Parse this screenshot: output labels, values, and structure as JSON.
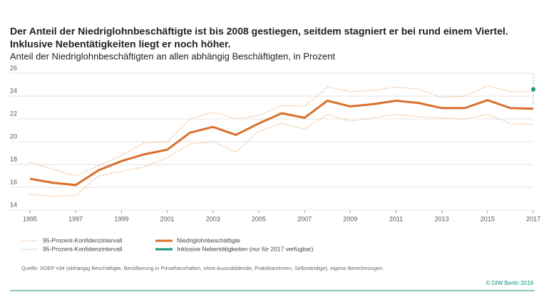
{
  "chart_data": {
    "type": "line",
    "title": "Der Anteil der Niedriglohnbeschäftigte ist bis 2008 gestiegen, seitdem stagniert er bei rund einem Viertel.",
    "title_line2": "Inklusive Nebentätigkeiten liegt er noch höher.",
    "subtitle": "Anteil der Niedriglohnbeschäftigten an allen abhängig Beschäftigten, in Prozent",
    "x": [
      1995,
      1996,
      1997,
      1998,
      1999,
      2000,
      2001,
      2002,
      2003,
      2004,
      2005,
      2006,
      2007,
      2008,
      2009,
      2010,
      2011,
      2012,
      2013,
      2014,
      2015,
      2016,
      2017
    ],
    "xlim": [
      1995,
      2017
    ],
    "xticks": [
      1995,
      1997,
      1999,
      2001,
      2003,
      2005,
      2007,
      2009,
      2011,
      2013,
      2015,
      2017
    ],
    "ylim": [
      14,
      26
    ],
    "yticks": [
      14,
      16,
      18,
      20,
      22,
      24,
      26
    ],
    "grid": true,
    "series": [
      {
        "name": "Niedriglohnbeschäftigte",
        "color": "#d9702b",
        "values": [
          16.75,
          16.4,
          16.2,
          17.5,
          18.3,
          18.9,
          19.3,
          20.8,
          21.3,
          20.6,
          21.6,
          22.5,
          22.1,
          23.6,
          23.1,
          23.3,
          23.6,
          23.4,
          22.95,
          22.95,
          23.65,
          22.95,
          22.9
        ]
      },
      {
        "name": "95-Prozent-Konfidenzintervall",
        "color": "#e9a46a",
        "upper": [
          18.2,
          17.6,
          17.0,
          17.9,
          18.8,
          19.9,
          20.0,
          22.0,
          22.6,
          22.0,
          22.3,
          23.2,
          23.1,
          24.8,
          24.4,
          24.5,
          24.8,
          24.6,
          23.9,
          24.0,
          24.9,
          24.4,
          24.4
        ],
        "lower": [
          15.4,
          15.2,
          15.3,
          17.0,
          17.4,
          17.8,
          18.6,
          19.8,
          20.0,
          19.1,
          20.9,
          21.6,
          21.1,
          22.4,
          21.8,
          22.1,
          22.4,
          22.2,
          22.1,
          22.0,
          22.4,
          21.6,
          21.5
        ]
      },
      {
        "name": "Inklusive Nebentätigkeiten (nur für 2017 verfügbar)",
        "color": "#1a9185",
        "values": [
          null,
          null,
          null,
          null,
          null,
          null,
          null,
          null,
          null,
          null,
          null,
          null,
          null,
          null,
          null,
          null,
          null,
          null,
          null,
          null,
          null,
          null,
          24.6
        ]
      },
      {
        "name": "95-Prozent-Konfidenzintervall",
        "color": "#7cc3a2",
        "upper": [
          null,
          null,
          null,
          null,
          null,
          null,
          null,
          null,
          null,
          null,
          null,
          null,
          null,
          null,
          null,
          null,
          null,
          null,
          null,
          null,
          null,
          null,
          25.9
        ],
        "lower": [
          null,
          null,
          null,
          null,
          null,
          null,
          null,
          null,
          null,
          null,
          null,
          null,
          null,
          null,
          null,
          null,
          null,
          null,
          null,
          null,
          null,
          null,
          23.3
        ]
      }
    ],
    "source": "Quelle: SOEP v34 (abhängig Beschäftigte, Bevölkerung in Privathaushalten, ohne Auszubildende, Praktikantinnen, Selbständige), eigene Berechnungen.",
    "credit": "© DIW Berlin 2019"
  }
}
